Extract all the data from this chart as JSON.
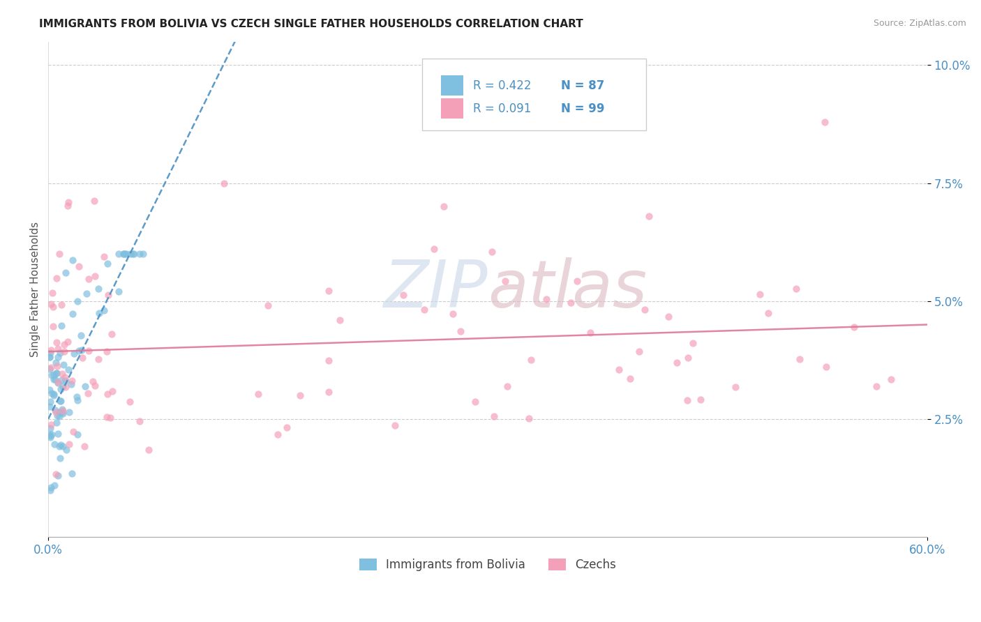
{
  "title": "IMMIGRANTS FROM BOLIVIA VS CZECH SINGLE FATHER HOUSEHOLDS CORRELATION CHART",
  "source_text": "Source: ZipAtlas.com",
  "ylabel": "Single Father Households",
  "xlim": [
    0.0,
    0.6
  ],
  "ylim": [
    0.0,
    0.105
  ],
  "x_tick_labels": [
    "0.0%",
    "60.0%"
  ],
  "y_tick_labels": [
    "2.5%",
    "5.0%",
    "7.5%",
    "10.0%"
  ],
  "color_blue": "#7fbfdf",
  "color_pink": "#f4a0b8",
  "color_blue_text": "#4a90c4",
  "color_pink_text": "#e07898",
  "watermark_color_zip": "#c8d8e8",
  "watermark_color_atlas": "#dbb8c0",
  "legend_r1": "R = 0.422",
  "legend_n1": "N = 87",
  "legend_r2": "R = 0.091",
  "legend_n2": "N = 99"
}
